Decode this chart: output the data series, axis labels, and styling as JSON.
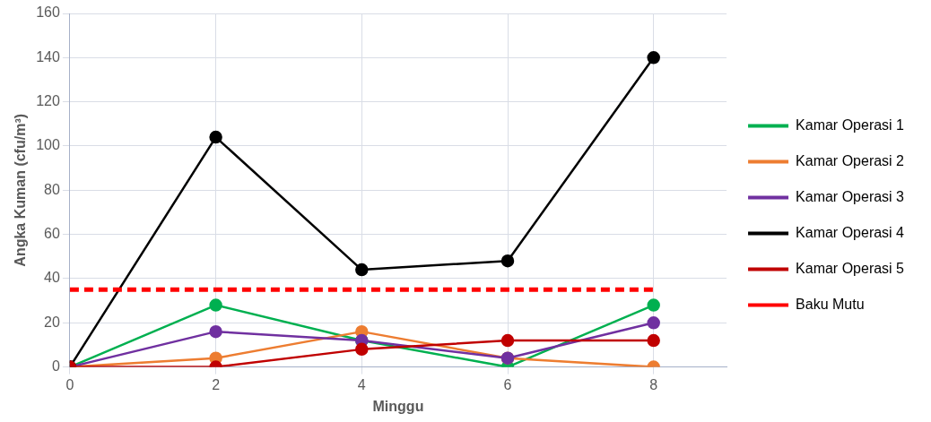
{
  "chart_data": {
    "type": "line",
    "xlabel": "Minggu",
    "ylabel": "Angka Kuman (cfu/m³)",
    "x": [
      0,
      2,
      4,
      6,
      8
    ],
    "xlim": [
      0,
      9
    ],
    "xticks": [
      0,
      2,
      4,
      6,
      8
    ],
    "ylim": [
      0,
      160
    ],
    "yticks": [
      0,
      20,
      40,
      60,
      80,
      100,
      120,
      140,
      160
    ],
    "grid": true,
    "legend": "right",
    "marker": "circle",
    "line_style": "solid",
    "series": [
      {
        "name": "Kamar Operasi 1",
        "color": "#00b050",
        "values": [
          0,
          28,
          12,
          0,
          28
        ]
      },
      {
        "name": "Kamar Operasi 2",
        "color": "#ed7d31",
        "values": [
          0,
          4,
          16,
          4,
          0
        ]
      },
      {
        "name": "Kamar Operasi 3",
        "color": "#7030a0",
        "values": [
          0,
          16,
          12,
          4,
          20
        ]
      },
      {
        "name": "Kamar Operasi 4",
        "color": "#000000",
        "values": [
          0,
          104,
          44,
          48,
          140
        ]
      },
      {
        "name": "Kamar Operasi 5",
        "color": "#c00000",
        "values": [
          0,
          0,
          8,
          12,
          12
        ]
      },
      {
        "name": "Baku Mutu",
        "color": "#ff0000",
        "x": [
          0,
          8
        ],
        "values": [
          35,
          35
        ],
        "line_style": "dashed",
        "marker": "none"
      }
    ]
  }
}
